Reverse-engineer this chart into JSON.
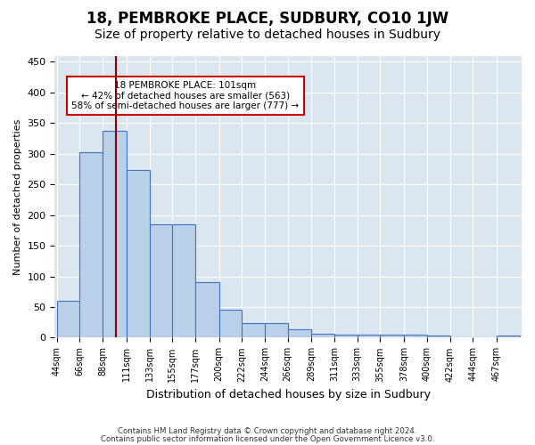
{
  "title": "18, PEMBROKE PLACE, SUDBURY, CO10 1JW",
  "subtitle": "Size of property relative to detached houses in Sudbury",
  "xlabel": "Distribution of detached houses by size in Sudbury",
  "ylabel": "Number of detached properties",
  "footnote1": "Contains HM Land Registry data © Crown copyright and database right 2024.",
  "footnote2": "Contains public sector information licensed under the Open Government Licence v3.0.",
  "annotation_line1": "18 PEMBROKE PLACE: 101sqm",
  "annotation_line2": "← 42% of detached houses are smaller (563)",
  "annotation_line3": "58% of semi-detached houses are larger (777) →",
  "property_sqm": 101,
  "bar_edges": [
    44,
    66,
    88,
    111,
    133,
    155,
    177,
    200,
    222,
    244,
    266,
    289,
    311,
    333,
    355,
    378,
    400,
    422,
    444,
    467,
    489
  ],
  "bar_values": [
    60,
    302,
    338,
    274,
    185,
    185,
    90,
    45,
    24,
    24,
    13,
    6,
    5,
    5,
    5,
    5,
    4,
    1,
    1,
    4
  ],
  "bar_color": "#b8d0e8",
  "bar_edge_color": "#4472c4",
  "background_color": "#dce6f1",
  "vline_color": "#8b0000",
  "vline_x": 101,
  "ylim": [
    0,
    460
  ],
  "yticks": [
    0,
    50,
    100,
    150,
    200,
    250,
    300,
    350,
    400,
    450
  ],
  "grid_color": "#ffffff",
  "annotation_box_edge_color": "#cc0000",
  "title_fontsize": 12,
  "subtitle_fontsize": 10
}
